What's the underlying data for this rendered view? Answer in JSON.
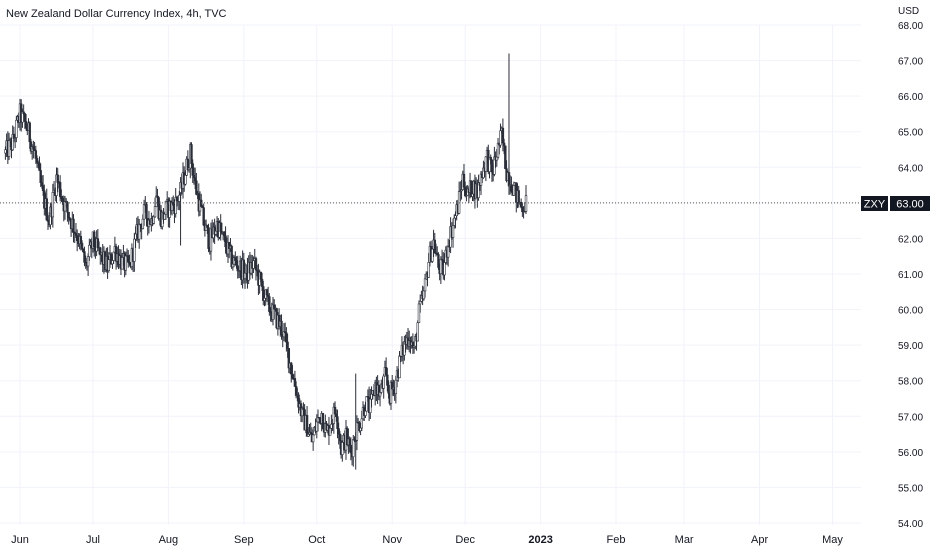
{
  "chart_data": {
    "type": "candlestick",
    "title": "New Zealand Dollar Currency Index, 4h, TVC",
    "currency": "USD",
    "symbol": "ZXY",
    "last_value": "63.00",
    "last_value_num": 63.0,
    "ylim": [
      54,
      68
    ],
    "y_ticks": [
      "54.00",
      "55.00",
      "56.00",
      "57.00",
      "58.00",
      "59.00",
      "60.00",
      "61.00",
      "62.00",
      "63.00",
      "64.00",
      "65.00",
      "66.00",
      "67.00",
      "68.00"
    ],
    "x_range_days": [
      0,
      342
    ],
    "x_ticks": [
      {
        "label": "Jun",
        "day": 0,
        "bold": false
      },
      {
        "label": "Jul",
        "day": 30,
        "bold": false
      },
      {
        "label": "Aug",
        "day": 61,
        "bold": false
      },
      {
        "label": "Sep",
        "day": 92,
        "bold": false
      },
      {
        "label": "Oct",
        "day": 122,
        "bold": false
      },
      {
        "label": "Nov",
        "day": 153,
        "bold": false
      },
      {
        "label": "Dec",
        "day": 183,
        "bold": false
      },
      {
        "label": "2023",
        "day": 214,
        "bold": true
      },
      {
        "label": "Feb",
        "day": 245,
        "bold": false
      },
      {
        "label": "Mar",
        "day": 273,
        "bold": false
      },
      {
        "label": "Apr",
        "day": 304,
        "bold": false
      },
      {
        "label": "May",
        "day": 334,
        "bold": false
      }
    ],
    "path_points": [
      [
        -6,
        64.4
      ],
      [
        -3,
        64.7
      ],
      [
        0,
        65.5
      ],
      [
        3,
        65.1
      ],
      [
        6,
        64.4
      ],
      [
        9,
        63.3
      ],
      [
        12,
        62.5
      ],
      [
        15,
        63.7
      ],
      [
        18,
        63.0
      ],
      [
        21,
        62.5
      ],
      [
        24,
        62.0
      ],
      [
        27,
        61.2
      ],
      [
        30,
        61.9
      ],
      [
        33,
        61.5
      ],
      [
        36,
        61.2
      ],
      [
        39,
        61.7
      ],
      [
        42,
        61.3
      ],
      [
        45,
        61.2
      ],
      [
        48,
        62.1
      ],
      [
        51,
        62.7
      ],
      [
        54,
        62.5
      ],
      [
        56,
        63.2
      ],
      [
        58,
        62.5
      ],
      [
        60,
        62.8
      ],
      [
        62,
        62.9
      ],
      [
        64,
        63.0
      ],
      [
        66,
        63.3
      ],
      [
        68,
        63.9
      ],
      [
        70,
        64.4
      ],
      [
        72,
        63.5
      ],
      [
        74,
        62.9
      ],
      [
        76,
        62.3
      ],
      [
        78,
        61.9
      ],
      [
        81,
        62.4
      ],
      [
        84,
        61.9
      ],
      [
        87,
        61.4
      ],
      [
        90,
        61.2
      ],
      [
        93,
        61.0
      ],
      [
        96,
        61.3
      ],
      [
        99,
        60.7
      ],
      [
        102,
        60.1
      ],
      [
        105,
        59.8
      ],
      [
        108,
        59.4
      ],
      [
        110,
        58.8
      ],
      [
        112,
        58.2
      ],
      [
        114,
        57.6
      ],
      [
        116,
        57.0
      ],
      [
        118,
        56.7
      ],
      [
        120,
        56.3
      ],
      [
        122,
        56.8
      ],
      [
        124,
        57.1
      ],
      [
        126,
        56.5
      ],
      [
        128,
        56.9
      ],
      [
        130,
        57.2
      ],
      [
        132,
        56.1
      ],
      [
        134,
        56.4
      ],
      [
        136,
        56.0
      ],
      [
        138,
        56.6
      ],
      [
        140,
        56.9
      ],
      [
        142,
        57.4
      ],
      [
        144,
        57.2
      ],
      [
        146,
        57.9
      ],
      [
        148,
        57.6
      ],
      [
        150,
        58.1
      ],
      [
        152,
        57.6
      ],
      [
        154,
        57.9
      ],
      [
        156,
        58.5
      ],
      [
        158,
        59.0
      ],
      [
        160,
        59.3
      ],
      [
        162,
        58.8
      ],
      [
        164,
        59.9
      ],
      [
        166,
        60.4
      ],
      [
        168,
        61.4
      ],
      [
        170,
        61.9
      ],
      [
        172,
        61.2
      ],
      [
        174,
        61.1
      ],
      [
        176,
        61.9
      ],
      [
        178,
        62.4
      ],
      [
        180,
        62.9
      ],
      [
        182,
        63.7
      ],
      [
        184,
        63.2
      ],
      [
        186,
        63.5
      ],
      [
        188,
        63.3
      ],
      [
        190,
        63.9
      ],
      [
        192,
        64.3
      ],
      [
        194,
        63.8
      ],
      [
        196,
        64.4
      ],
      [
        198,
        64.9
      ],
      [
        200,
        63.9
      ],
      [
        202,
        63.6
      ],
      [
        204,
        63.2
      ],
      [
        206,
        62.9
      ],
      [
        208,
        63.0
      ]
    ]
  }
}
